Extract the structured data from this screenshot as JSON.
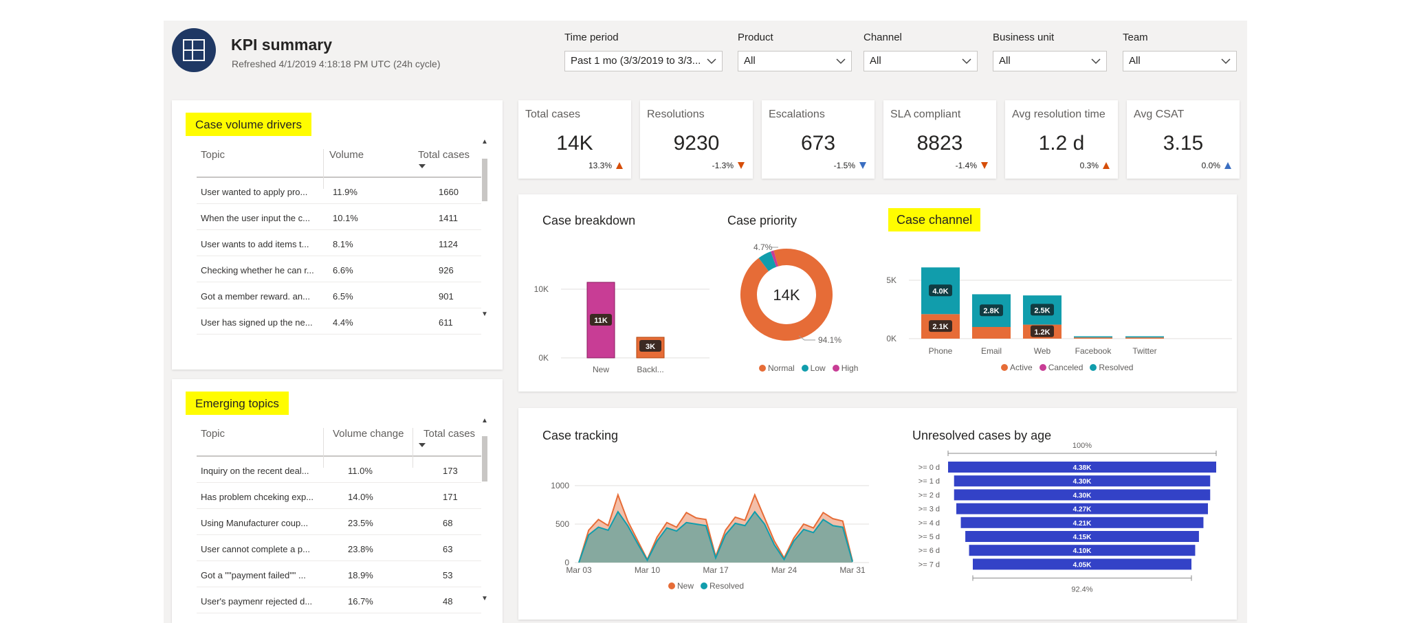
{
  "header": {
    "title": "KPI summary",
    "refreshed": "Refreshed 4/1/2019 4:18:18 PM UTC (24h cycle)"
  },
  "filters": [
    {
      "label": "Time period",
      "value": "Past 1 mo (3/3/2019 to 3/3..."
    },
    {
      "label": "Product",
      "value": "All"
    },
    {
      "label": "Channel",
      "value": "All"
    },
    {
      "label": "Business unit",
      "value": "All"
    },
    {
      "label": "Team",
      "value": "All"
    }
  ],
  "case_volume_drivers": {
    "title": "Case volume drivers",
    "columns": [
      "Topic",
      "Volume",
      "Total cases"
    ],
    "rows": [
      [
        "User wanted to apply pro...",
        "11.9%",
        "1660"
      ],
      [
        "When the user input the c...",
        "10.1%",
        "1411"
      ],
      [
        "User wants to add items t...",
        "8.1%",
        "1124"
      ],
      [
        "Checking whether he can r...",
        "6.6%",
        "926"
      ],
      [
        "Got a member reward. an...",
        "6.5%",
        "901"
      ],
      [
        "User has signed up the ne...",
        "4.4%",
        "611"
      ]
    ]
  },
  "emerging_topics": {
    "title": "Emerging topics",
    "columns": [
      "Topic",
      "Volume change",
      "Total cases"
    ],
    "rows": [
      [
        "Inquiry on the recent deal...",
        "11.0%",
        "173"
      ],
      [
        "Has problem chceking exp...",
        "14.0%",
        "171"
      ],
      [
        "Using Manufacturer coup...",
        "23.5%",
        "68"
      ],
      [
        "User cannot complete a p...",
        "23.8%",
        "63"
      ],
      [
        "Got a \"\"payment failed\"\" ...",
        "18.9%",
        "53"
      ],
      [
        "User's paymenr rejected d...",
        "16.7%",
        "48"
      ]
    ]
  },
  "kpis": [
    {
      "label": "Total cases",
      "value": "14K",
      "delta": "13.3%",
      "dir": "up",
      "color": "orange"
    },
    {
      "label": "Resolutions",
      "value": "9230",
      "delta": "-1.3%",
      "dir": "down",
      "color": "orange"
    },
    {
      "label": "Escalations",
      "value": "673",
      "delta": "-1.5%",
      "dir": "down",
      "color": "blue"
    },
    {
      "label": "SLA compliant",
      "value": "8823",
      "delta": "-1.4%",
      "dir": "down",
      "color": "orange"
    },
    {
      "label": "Avg resolution time",
      "value": "1.2 d",
      "delta": "0.3%",
      "dir": "up",
      "color": "orange"
    },
    {
      "label": "Avg CSAT",
      "value": "3.15",
      "delta": "0.0%",
      "dir": "up",
      "color": "blue"
    }
  ],
  "colors": {
    "orange": "#e66c37",
    "teal": "#119dac",
    "magenta": "#c83d95",
    "blue_bar": "#3342c7",
    "navy": "#1f3864",
    "highlight": "#fffc00"
  },
  "chart_data": [
    {
      "id": "case_breakdown",
      "type": "bar",
      "title": "Case breakdown",
      "categories": [
        "New",
        "Backl..."
      ],
      "values": [
        11000,
        3000
      ],
      "labels": [
        "11K",
        "3K"
      ],
      "yticks": [
        "0K",
        "10K"
      ],
      "ylim": [
        0,
        14000
      ]
    },
    {
      "id": "case_priority",
      "type": "pie",
      "title": "Case priority",
      "center_label": "14K",
      "slices": [
        {
          "name": "Normal",
          "value": 94.1
        },
        {
          "name": "Low",
          "value": 4.7
        },
        {
          "name": "High",
          "value": 1.2
        }
      ],
      "annotations": [
        "4.7%",
        "94.1%"
      ],
      "legend": [
        "Normal",
        "Low",
        "High"
      ]
    },
    {
      "id": "case_channel",
      "type": "bar",
      "title": "Case channel",
      "categories": [
        "Phone",
        "Email",
        "Web",
        "Facebook",
        "Twitter"
      ],
      "series": [
        {
          "name": "Active",
          "values": [
            2100,
            1000,
            1200,
            100,
            100
          ]
        },
        {
          "name": "Canceled",
          "values": [
            0,
            0,
            0,
            0,
            0
          ]
        },
        {
          "name": "Resolved",
          "values": [
            4000,
            2800,
            2500,
            100,
            100
          ]
        }
      ],
      "labels": {
        "Active": [
          "2.1K",
          "",
          "1.2K",
          "",
          ""
        ],
        "Resolved": [
          "4.0K",
          "2.8K",
          "2.5K",
          "",
          ""
        ]
      },
      "yticks": [
        "0K",
        "5K"
      ],
      "ylim": [
        0,
        6500
      ]
    },
    {
      "id": "case_tracking",
      "type": "area",
      "title": "Case tracking",
      "x": [
        "Mar 03",
        "Mar 04",
        "Mar 05",
        "Mar 06",
        "Mar 07",
        "Mar 08",
        "Mar 09",
        "Mar 10",
        "Mar 11",
        "Mar 12",
        "Mar 13",
        "Mar 14",
        "Mar 15",
        "Mar 16",
        "Mar 17",
        "Mar 18",
        "Mar 19",
        "Mar 20",
        "Mar 21",
        "Mar 22",
        "Mar 23",
        "Mar 24",
        "Mar 25",
        "Mar 26",
        "Mar 27",
        "Mar 28",
        "Mar 29",
        "Mar 30",
        "Mar 31"
      ],
      "xticks": [
        "Mar 03",
        "Mar 10",
        "Mar 17",
        "Mar 24",
        "Mar 31"
      ],
      "series": [
        {
          "name": "New",
          "values": [
            0,
            420,
            560,
            480,
            880,
            540,
            290,
            40,
            330,
            520,
            460,
            650,
            580,
            560,
            80,
            420,
            590,
            550,
            880,
            580,
            280,
            60,
            320,
            500,
            450,
            650,
            570,
            540,
            20
          ]
        },
        {
          "name": "Resolved",
          "values": [
            0,
            360,
            460,
            420,
            660,
            480,
            250,
            30,
            280,
            450,
            410,
            520,
            500,
            480,
            60,
            360,
            510,
            480,
            660,
            500,
            230,
            40,
            280,
            430,
            390,
            560,
            480,
            460,
            10
          ]
        }
      ],
      "yticks": [
        "0",
        "500",
        "1000"
      ],
      "ylim": [
        0,
        1100
      ]
    },
    {
      "id": "unresolved_by_age",
      "type": "bar",
      "title": "Unresolved cases by age",
      "categories": [
        ">= 0 d",
        ">= 1 d",
        ">= 2 d",
        ">= 3 d",
        ">= 4 d",
        ">= 5 d",
        ">= 6 d",
        ">= 7 d"
      ],
      "values": [
        4.38,
        4.3,
        4.3,
        4.27,
        4.21,
        4.15,
        4.1,
        4.05
      ],
      "labels": [
        "4.38K",
        "4.30K",
        "4.30K",
        "4.27K",
        "4.21K",
        "4.15K",
        "4.10K",
        "4.05K"
      ],
      "top_label": "100%",
      "bottom_label": "92.4%"
    }
  ],
  "legends": {
    "case_priority": [
      "Normal",
      "Low",
      "High"
    ],
    "case_channel": [
      "Active",
      "Canceled",
      "Resolved"
    ],
    "case_tracking": [
      "New",
      "Resolved"
    ]
  }
}
